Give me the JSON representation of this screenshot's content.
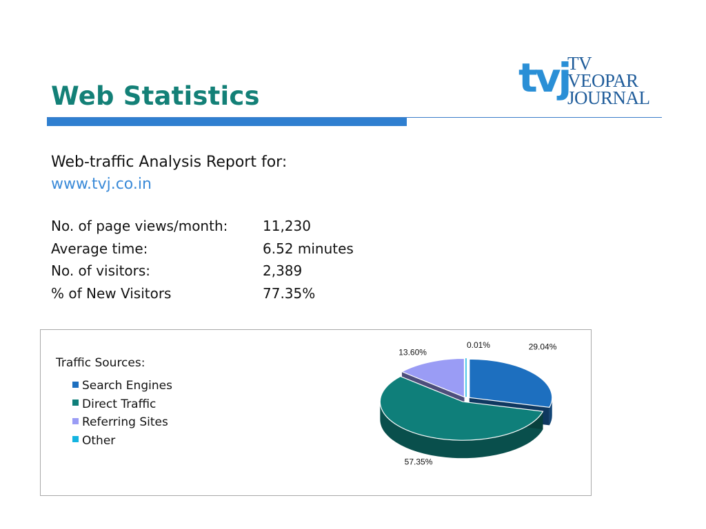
{
  "header": {
    "title": "Web Statistics",
    "logo": {
      "mark": "tvj",
      "line1": "TV",
      "line2": "VEOPAR",
      "line3": "JOURNAL"
    }
  },
  "report": {
    "heading": "Web-traffic Analysis Report for:",
    "url": "www.tvj.co.in"
  },
  "stats": [
    {
      "label": "No. of page views/month:",
      "value": "11,230"
    },
    {
      "label": "Average time:",
      "value": "6.52 minutes"
    },
    {
      "label": "No. of visitors:",
      "value": "2,389"
    },
    {
      "label": "% of New Visitors",
      "value": "77.35%"
    }
  ],
  "colors": {
    "title": "#138077",
    "rule": "#2f7fd0",
    "url": "#3a8ad8"
  },
  "chart_data": {
    "type": "pie",
    "title": "Traffic Sources:",
    "legend_position": "left",
    "labels": [
      "Search Engines",
      "Direct Traffic",
      "Referring Sites",
      "Other"
    ],
    "values": [
      29.04,
      57.35,
      13.6,
      0.01
    ],
    "data_labels": [
      "29.04%",
      "57.35%",
      "13.60%",
      "0.01%"
    ],
    "colors": [
      "#1d6fbf",
      "#0f7f7a",
      "#9a9cf5",
      "#14b4e0"
    ]
  }
}
